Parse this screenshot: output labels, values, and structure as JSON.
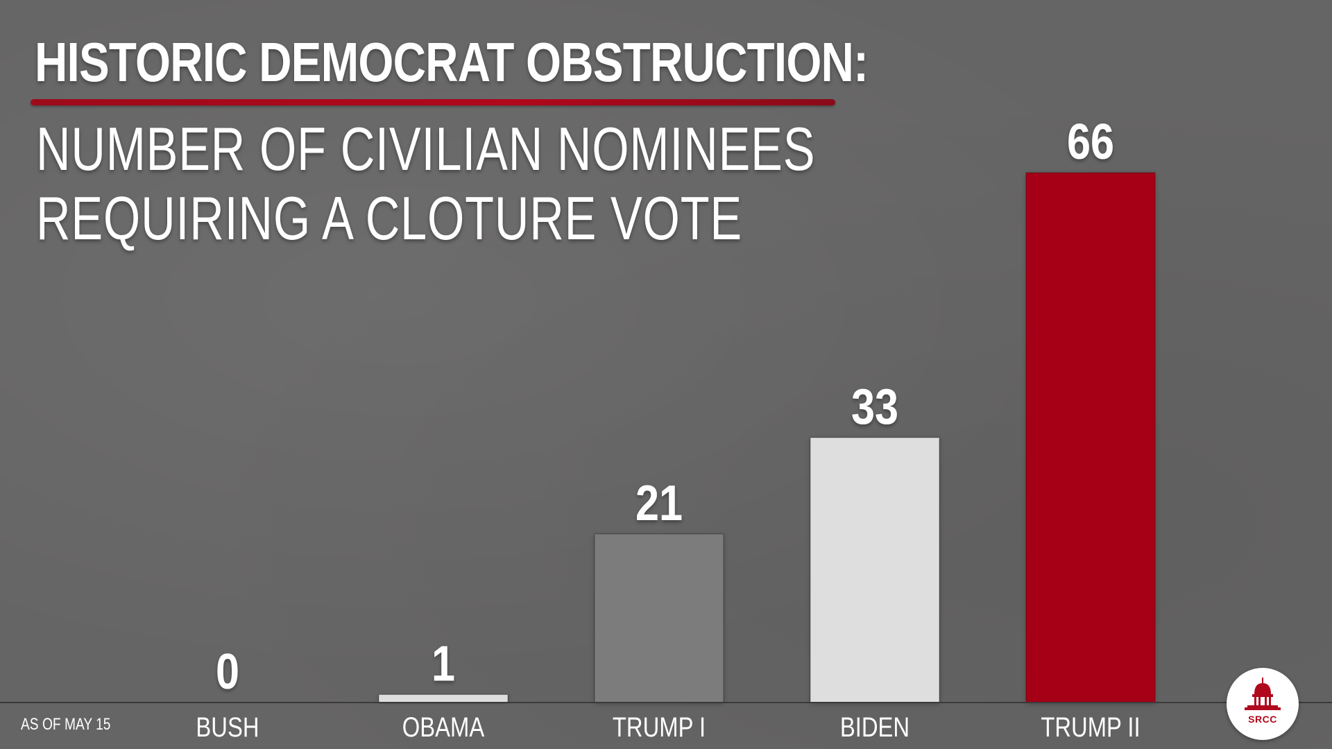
{
  "headline": "HISTORIC DEMOCRAT OBSTRUCTION:",
  "subtitle_lines": [
    "NUMBER OF CIVILIAN NOMINEES",
    "REQUIRING A CLOTURE VOTE"
  ],
  "footnote": "AS OF MAY 15",
  "logo": {
    "text": "SRCC",
    "icon": "capitol-dome-icon"
  },
  "colors": {
    "background": "#666565",
    "accent_red": "#a50015",
    "bar_light": "#dedede",
    "bar_mid": "#7c7c7c",
    "text": "#ffffff",
    "baseline": "#3a3a3a"
  },
  "chart_data": {
    "type": "bar",
    "title": "NUMBER OF CIVILIAN NOMINEES REQUIRING A CLOTURE VOTE",
    "xlabel": "",
    "ylabel": "",
    "ylim": [
      0,
      66
    ],
    "grid": false,
    "legend": "none",
    "categories": [
      "BUSH",
      "OBAMA",
      "TRUMP I",
      "BIDEN",
      "TRUMP II"
    ],
    "values": [
      0,
      1,
      21,
      33,
      66
    ],
    "bar_colors": [
      "#dedede",
      "#dedede",
      "#7c7c7c",
      "#dedede",
      "#a50015"
    ],
    "data_labels": [
      "0",
      "1",
      "21",
      "33",
      "66"
    ]
  }
}
